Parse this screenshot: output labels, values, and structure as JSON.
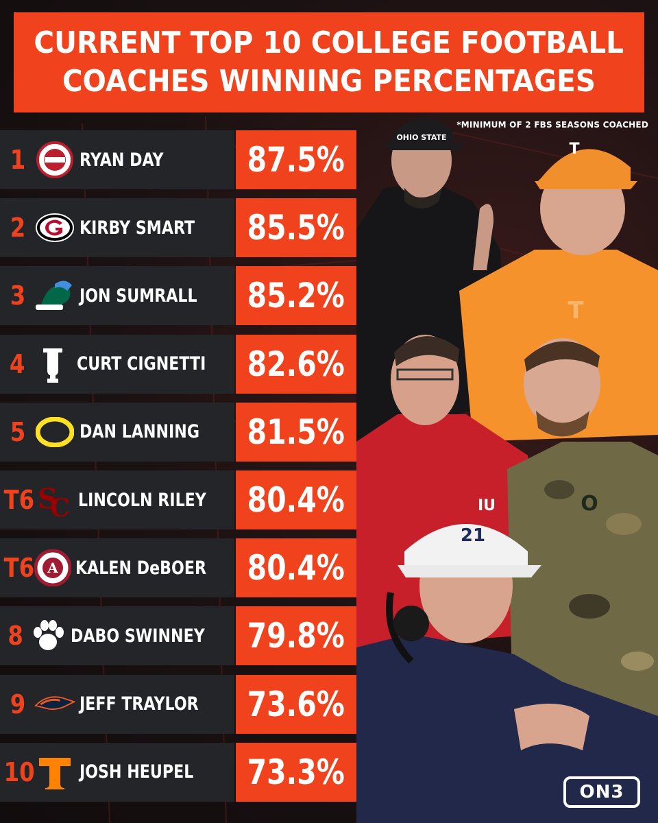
{
  "title": {
    "line1": "CURRENT TOP 10 COLLEGE FOOTBALL",
    "line2": "COACHES WINNING PERCENTAGES"
  },
  "footnote": "*MINIMUM OF 2 FBS SEASONS COACHED",
  "brand": "ON3",
  "colors": {
    "accent": "#f0421d",
    "row_bg": "#242528",
    "background": "#1a1516"
  },
  "rows": [
    {
      "rank": "1",
      "logo": "ohio-state-logo",
      "coach": "RYAN DAY",
      "pct": "87.5%"
    },
    {
      "rank": "2",
      "logo": "georgia-logo",
      "coach": "KIRBY SMART",
      "pct": "85.5%"
    },
    {
      "rank": "3",
      "logo": "tulane-logo",
      "coach": "JON SUMRALL",
      "pct": "85.2%"
    },
    {
      "rank": "4",
      "logo": "indiana-logo",
      "coach": "CURT CIGNETTI",
      "pct": "82.6%"
    },
    {
      "rank": "5",
      "logo": "oregon-logo",
      "coach": "DAN LANNING",
      "pct": "81.5%"
    },
    {
      "rank": "T6",
      "logo": "usc-logo",
      "coach": "LINCOLN RILEY",
      "pct": "80.4%"
    },
    {
      "rank": "T6",
      "logo": "alabama-logo",
      "coach": "KALEN DeBOER",
      "pct": "80.4%"
    },
    {
      "rank": "8",
      "logo": "clemson-logo",
      "coach": "DABO SWINNEY",
      "pct": "79.8%"
    },
    {
      "rank": "9",
      "logo": "utsa-logo",
      "coach": "JEFF TRAYLOR",
      "pct": "73.6%"
    },
    {
      "rank": "10",
      "logo": "tennessee-logo",
      "coach": "JOSH HEUPEL",
      "pct": "73.3%"
    }
  ],
  "photo_labels": {
    "hat_ohio_state": "OHIO STATE",
    "hat_tennessee": "T",
    "shirt_indiana": "IU",
    "shirt_oregon": "O",
    "hat_utsa": "21"
  }
}
